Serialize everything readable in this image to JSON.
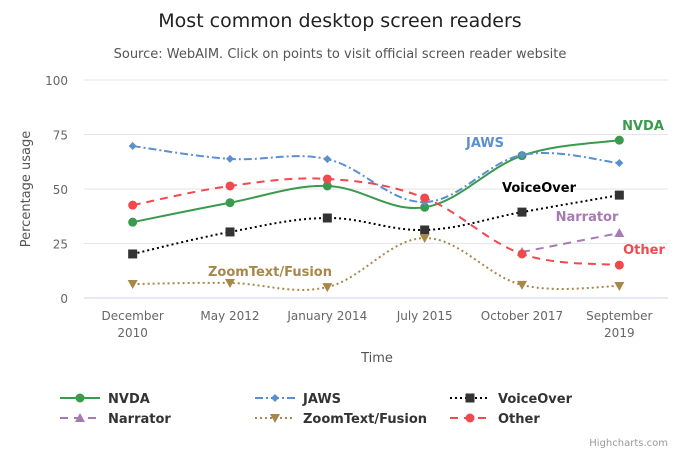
{
  "chart_data": {
    "type": "line",
    "title": "Most common desktop screen readers",
    "subtitle": "Source: WebAIM. Click on points to visit official screen reader website",
    "xlabel": "Time",
    "ylabel": "Percentage usage",
    "ylim": [
      0,
      100
    ],
    "yticks": [
      0,
      25,
      50,
      75,
      100
    ],
    "grid": true,
    "legend_placement": "bottom",
    "categories": [
      [
        "December",
        "2010"
      ],
      [
        "May 2012"
      ],
      [
        "January 2014"
      ],
      [
        "July 2015"
      ],
      [
        "October 2017"
      ],
      [
        "September",
        "2019"
      ]
    ],
    "series": [
      {
        "name": "NVDA",
        "color": "#3a9a4e",
        "dash": "solid",
        "marker": "circle",
        "values": [
          34.8,
          43.7,
          51.4,
          41.6,
          65.3,
          72.4
        ],
        "label": "NVDA"
      },
      {
        "name": "JAWS",
        "color": "#5b8fd0",
        "dash": "dashdot",
        "marker": "diamond",
        "values": [
          69.7,
          63.8,
          63.7,
          44,
          65.6,
          61.9
        ],
        "label": "JAWS"
      },
      {
        "name": "VoiceOver",
        "color": "#000000",
        "dash": "dot",
        "marker": "square",
        "values": [
          20.2,
          30.3,
          36.7,
          31.2,
          39.4,
          47.2
        ],
        "label": "VoiceOver"
      },
      {
        "name": "Narrator",
        "color": "#a87ab5",
        "dash": "dash",
        "marker": "triangle",
        "values": [
          null,
          null,
          null,
          null,
          21.1,
          29.8
        ],
        "label": "Narrator"
      },
      {
        "name": "ZoomText/Fusion",
        "color": "#a8874a",
        "dash": "dot",
        "marker": "triangle-down",
        "values": [
          6.4,
          6.9,
          5.0,
          27.5,
          6.0,
          5.5
        ],
        "label": "ZoomText/Fusion"
      },
      {
        "name": "Other",
        "color": "#f04a4f",
        "dash": "dash",
        "marker": "circle",
        "values": [
          42.6,
          51.4,
          54.6,
          45.9,
          20.2,
          15.1
        ],
        "label": "Other"
      }
    ]
  },
  "credits": "Highcharts.com"
}
